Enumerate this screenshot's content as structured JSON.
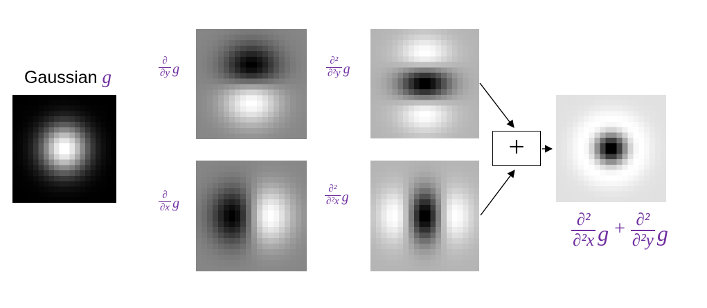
{
  "colors": {
    "accent_purple": "#7030A0",
    "ink": "#000000"
  },
  "heading": {
    "gaussian_prefix": "Gaussian ",
    "gaussian_symbol": "g"
  },
  "labels": {
    "dy": {
      "numerator": "∂",
      "denominator": "∂y",
      "operand": "g"
    },
    "dx": {
      "numerator": "∂",
      "denominator": "∂x",
      "operand": "g"
    },
    "dyy": {
      "numerator": "∂²",
      "denominator": "∂²y",
      "operand": "g"
    },
    "dxx": {
      "numerator": "∂²",
      "denominator": "∂²x",
      "operand": "g"
    }
  },
  "operator_box": {
    "symbol": "+"
  },
  "formula": {
    "term1": {
      "numerator": "∂²",
      "denominator": "∂²x",
      "operand": "g"
    },
    "plus": "+",
    "term2": {
      "numerator": "∂²",
      "denominator": "∂²y",
      "operand": "g"
    }
  },
  "kernels": [
    {
      "id": "gaussian",
      "type": "gaussian",
      "sigma": 3.0,
      "grid": 20,
      "description": "2D Gaussian kernel g (white blob on black)"
    },
    {
      "id": "dy",
      "type": "dy",
      "sigma": 3.5,
      "grid": 20,
      "description": "First derivative of Gaussian in y (dark lobe above, bright lobe below, mid-gray background)"
    },
    {
      "id": "dx",
      "type": "dx",
      "sigma": 3.5,
      "grid": 20,
      "description": "First derivative of Gaussian in x (dark lobe left, bright lobe right, mid-gray background)"
    },
    {
      "id": "dyy",
      "type": "dyy",
      "sigma": 3.3,
      "grid": 20,
      "description": "Second derivative of Gaussian in y (bright-dark-bright horizontal bands, light-gray background)"
    },
    {
      "id": "dxx",
      "type": "dxx",
      "sigma": 3.3,
      "grid": 20,
      "description": "Second derivative of Gaussian in x (bright-dark-bright vertical bands, light-gray background)"
    },
    {
      "id": "laplacian",
      "type": "log",
      "sigma": 2.7,
      "grid": 20,
      "description": "Laplacian of Gaussian result (dark center blob on near-white background)"
    }
  ]
}
